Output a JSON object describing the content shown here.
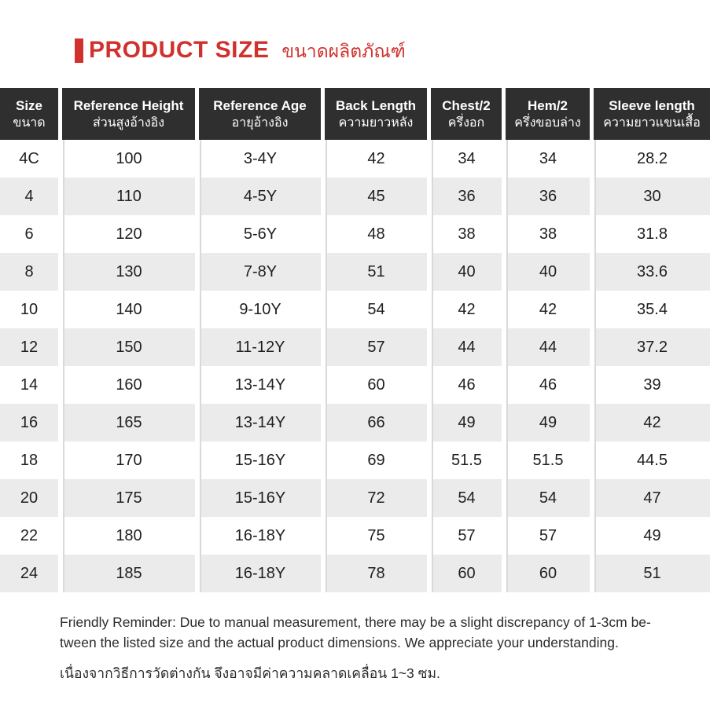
{
  "title": {
    "en": "PRODUCT SIZE",
    "th": "ขนาดผลิตภัณฑ์"
  },
  "table": {
    "columns": [
      {
        "en": "Size",
        "th": "ขนาด"
      },
      {
        "en": "Reference Height",
        "th": "ส่วนสูงอ้างอิง"
      },
      {
        "en": "Reference Age",
        "th": "อายุอ้างอิง"
      },
      {
        "en": "Back Length",
        "th": "ความยาวหลัง"
      },
      {
        "en": "Chest/2",
        "th": "ครึ่งอก"
      },
      {
        "en": "Hem/2",
        "th": "ครึ่งขอบล่าง"
      },
      {
        "en": "Sleeve length",
        "th": "ความยาวแขนเสื้อ"
      }
    ],
    "rows": [
      [
        "4C",
        "100",
        "3-4Y",
        "42",
        "34",
        "34",
        "28.2"
      ],
      [
        "4",
        "110",
        "4-5Y",
        "45",
        "36",
        "36",
        "30"
      ],
      [
        "6",
        "120",
        "5-6Y",
        "48",
        "38",
        "38",
        "31.8"
      ],
      [
        "8",
        "130",
        "7-8Y",
        "51",
        "40",
        "40",
        "33.6"
      ],
      [
        "10",
        "140",
        "9-10Y",
        "54",
        "42",
        "42",
        "35.4"
      ],
      [
        "12",
        "150",
        "11-12Y",
        "57",
        "44",
        "44",
        "37.2"
      ],
      [
        "14",
        "160",
        "13-14Y",
        "60",
        "46",
        "46",
        "39"
      ],
      [
        "16",
        "165",
        "13-14Y",
        "66",
        "49",
        "49",
        "42"
      ],
      [
        "18",
        "170",
        "15-16Y",
        "69",
        "51.5",
        "51.5",
        "44.5"
      ],
      [
        "20",
        "175",
        "15-16Y",
        "72",
        "54",
        "54",
        "47"
      ],
      [
        "22",
        "180",
        "16-18Y",
        "75",
        "57",
        "57",
        "49"
      ],
      [
        "24",
        "185",
        "16-18Y",
        "78",
        "60",
        "60",
        "51"
      ]
    ]
  },
  "footer": {
    "reminder_line1": "Friendly Reminder: Due to manual measurement, there may be a slight discrepancy of 1-3cm be-",
    "reminder_line2": "tween the listed size and the actual product dimensions. We appreciate your understanding.",
    "reminder_th": "เนื่องจากวิธีการวัดต่างกัน จึงอาจมีค่าความคลาดเคลื่อน 1~3 ซม."
  },
  "colors": {
    "accent_red": "#d0312d",
    "header_bg": "#2f2f2f",
    "stripe_gray": "#ebebeb",
    "separator_gray": "#d9d9d9"
  }
}
